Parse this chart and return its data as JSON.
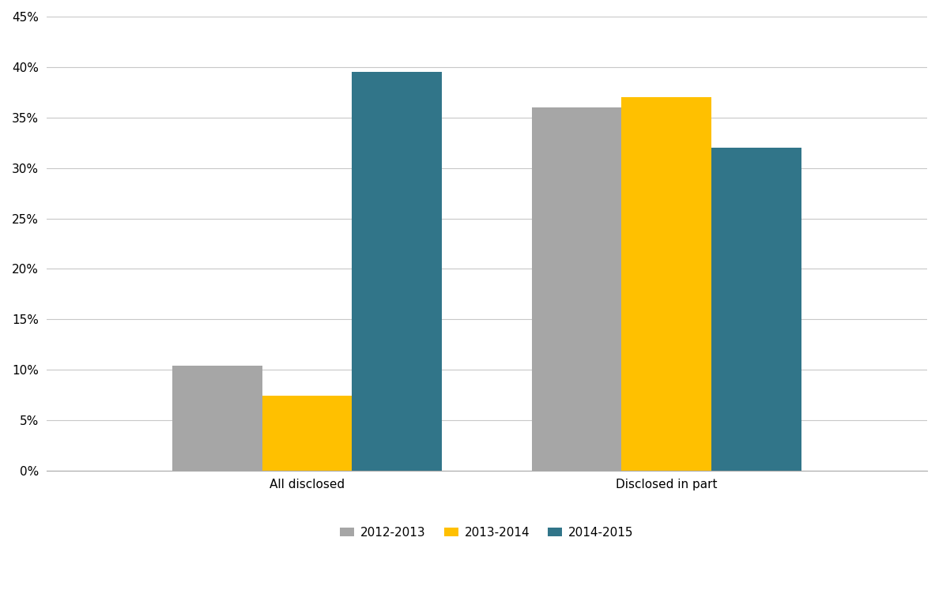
{
  "categories": [
    "All disclosed",
    "Disclosed in part"
  ],
  "series": [
    {
      "label": "2012-2013",
      "values": [
        0.104,
        0.36
      ],
      "color": "#a6a6a6"
    },
    {
      "label": "2013-2014",
      "values": [
        0.074,
        0.37
      ],
      "color": "#ffc000"
    },
    {
      "label": "2014-2015",
      "values": [
        0.395,
        0.32
      ],
      "color": "#317589"
    }
  ],
  "ylim": [
    0,
    0.45
  ],
  "yticks": [
    0.0,
    0.05,
    0.1,
    0.15,
    0.2,
    0.25,
    0.3,
    0.35,
    0.4,
    0.45
  ],
  "background_color": "#ffffff",
  "grid_color": "#c8c8c8",
  "bar_width": 0.25,
  "legend_fontsize": 11,
  "tick_fontsize": 11
}
